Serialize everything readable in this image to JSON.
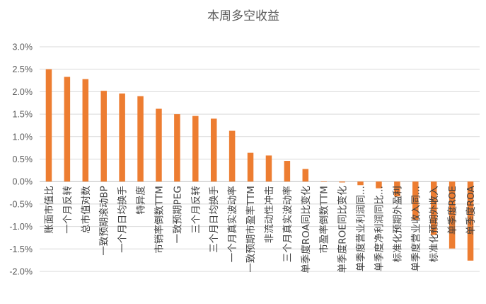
{
  "chart_data": {
    "type": "bar",
    "title": "本周多空收益",
    "xlabel": "",
    "ylabel": "",
    "ylim": [
      -2.0,
      3.0
    ],
    "ytick_step": 0.5,
    "y_format": "percent",
    "grid": true,
    "legend": "none",
    "bar_color": "#ED7D31",
    "categories": [
      "账面市值比",
      "一个月反转",
      "总市值对数",
      "一致预期滚动BP",
      "一个月日均换手",
      "特异度",
      "市销率倒数TTM",
      "一致预期PEG",
      "三个月反转",
      "三个月日均换手",
      "一个月真实波动率",
      "一致预期市盈率TTM",
      "非流动性冲击",
      "三个月真实波动率",
      "单季度ROA同比变化",
      "市盈率倒数TTM",
      "单季度ROE同比变化",
      "单季度营业利润同...",
      "单季度净利润同比...",
      "标准化预期外盈利",
      "单季度营业收入同...",
      "标准化预期外收入",
      "单季度ROE",
      "单季度ROA"
    ],
    "values": [
      2.5,
      2.33,
      2.28,
      2.02,
      1.96,
      1.9,
      1.62,
      1.5,
      1.46,
      1.4,
      1.13,
      0.64,
      0.58,
      0.46,
      0.28,
      -0.01,
      -0.02,
      -0.08,
      -0.15,
      -0.33,
      -0.85,
      -1.19,
      -1.49,
      -1.76
    ]
  }
}
